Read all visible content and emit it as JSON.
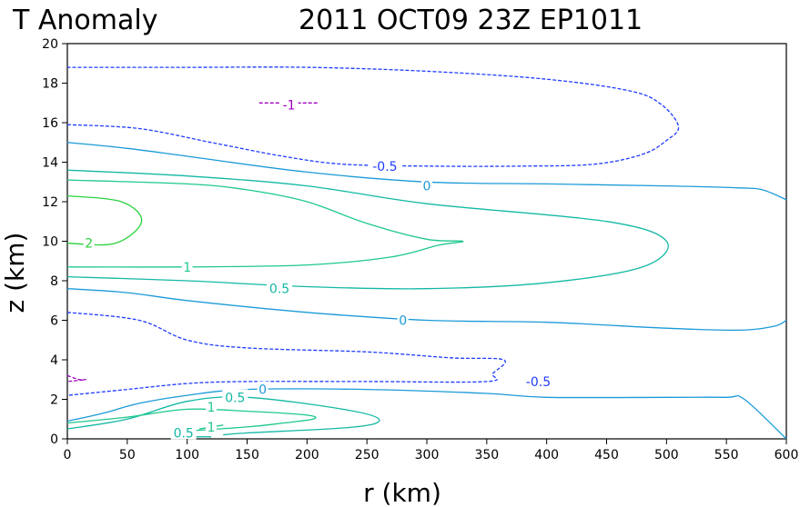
{
  "title": {
    "left": "T Anomaly",
    "right": "2011 OCT09 23Z  EP1011"
  },
  "chart_data": {
    "type": "contour",
    "title": "T Anomaly",
    "subtitle": "2011 OCT09 23Z  EP1011",
    "xlabel": "r (km)",
    "ylabel": "z (km)",
    "xlim": [
      0,
      600
    ],
    "ylim": [
      0,
      20
    ],
    "xticks": [
      0,
      50,
      100,
      150,
      200,
      250,
      300,
      350,
      400,
      450,
      500,
      550,
      600
    ],
    "yticks": [
      0,
      2,
      4,
      6,
      8,
      10,
      12,
      14,
      16,
      18,
      20
    ],
    "grid": false,
    "colors": {
      "neg1": "#a000c0",
      "neg05": "#1e3cff",
      "zero": "#1c9ad8",
      "pos05": "#13b8a4",
      "pos1": "#1ec88c",
      "pos2": "#28d23c"
    },
    "contours": [
      {
        "level": -1,
        "color_key": "neg1",
        "dashed": true,
        "label": "-1",
        "label_at": [
          185,
          16.9
        ],
        "points": [
          [
            160,
            17.0
          ],
          [
            210,
            17.0
          ]
        ]
      },
      {
        "level": -1,
        "color_key": "neg1",
        "dashed": true,
        "label": "",
        "label_at": null,
        "points": [
          [
            0,
            3.2
          ],
          [
            10,
            3.0
          ],
          [
            15,
            3.0
          ],
          [
            0,
            2.9
          ]
        ]
      },
      {
        "level": -0.5,
        "color_key": "neg05",
        "dashed": true,
        "label": "-0.5",
        "label_at": [
          265,
          13.8
        ],
        "points": [
          [
            0,
            15.9
          ],
          [
            60,
            15.7
          ],
          [
            120,
            15.0
          ],
          [
            180,
            14.3
          ],
          [
            230,
            13.9
          ],
          [
            300,
            13.8
          ],
          [
            380,
            13.8
          ],
          [
            440,
            13.9
          ],
          [
            480,
            14.4
          ],
          [
            500,
            15.1
          ],
          [
            510,
            15.8
          ],
          [
            496,
            16.9
          ],
          [
            470,
            17.6
          ],
          [
            400,
            18.2
          ],
          [
            300,
            18.6
          ],
          [
            200,
            18.8
          ],
          [
            100,
            18.8
          ],
          [
            0,
            18.8
          ]
        ]
      },
      {
        "level": -0.5,
        "color_key": "neg05",
        "dashed": true,
        "label": "-0.5",
        "label_at": [
          393,
          2.9
        ],
        "points": [
          [
            0,
            6.4
          ],
          [
            60,
            6.0
          ],
          [
            100,
            5.0
          ],
          [
            150,
            4.6
          ],
          [
            250,
            4.4
          ],
          [
            320,
            4.1
          ],
          [
            364,
            4.0
          ],
          [
            355,
            3.3
          ],
          [
            350,
            2.9
          ],
          [
            250,
            2.9
          ],
          [
            150,
            2.9
          ],
          [
            100,
            2.8
          ],
          [
            50,
            2.5
          ],
          [
            0,
            2.2
          ]
        ]
      },
      {
        "level": 0,
        "color_key": "zero",
        "dashed": false,
        "label": "0",
        "label_at": [
          300,
          12.8
        ],
        "points": [
          [
            0,
            15.0
          ],
          [
            50,
            14.7
          ],
          [
            100,
            14.3
          ],
          [
            200,
            13.5
          ],
          [
            300,
            13.0
          ],
          [
            400,
            12.9
          ],
          [
            500,
            12.8
          ],
          [
            560,
            12.7
          ],
          [
            580,
            12.6
          ],
          [
            600,
            12.1
          ]
        ]
      },
      {
        "level": 0,
        "color_key": "zero",
        "dashed": false,
        "label": "0",
        "label_at": [
          280,
          6.0
        ],
        "points": [
          [
            0,
            7.6
          ],
          [
            50,
            7.4
          ],
          [
            100,
            7.0
          ],
          [
            200,
            6.4
          ],
          [
            300,
            6.0
          ],
          [
            400,
            5.9
          ],
          [
            500,
            5.6
          ],
          [
            560,
            5.5
          ],
          [
            590,
            5.7
          ],
          [
            600,
            6.0
          ]
        ]
      },
      {
        "level": 0,
        "color_key": "zero",
        "dashed": false,
        "label": "0",
        "label_at": [
          163,
          2.5
        ],
        "points": [
          [
            0,
            0.9
          ],
          [
            30,
            1.3
          ],
          [
            60,
            1.8
          ],
          [
            100,
            2.2
          ],
          [
            150,
            2.5
          ],
          [
            250,
            2.5
          ],
          [
            350,
            2.3
          ],
          [
            400,
            2.1
          ],
          [
            500,
            2.1
          ],
          [
            550,
            2.1
          ],
          [
            565,
            2.0
          ],
          [
            600,
            0.0
          ]
        ]
      },
      {
        "level": 0.5,
        "color_key": "pos05",
        "dashed": false,
        "label": "0.5",
        "label_at": [
          177,
          7.6
        ],
        "points": [
          [
            0,
            8.2
          ],
          [
            100,
            8.0
          ],
          [
            200,
            7.7
          ],
          [
            300,
            7.6
          ],
          [
            400,
            7.9
          ],
          [
            480,
            8.7
          ],
          [
            500,
            10.0
          ],
          [
            450,
            11.0
          ],
          [
            300,
            11.9
          ],
          [
            200,
            12.8
          ],
          [
            100,
            13.3
          ],
          [
            0,
            13.6
          ]
        ]
      },
      {
        "level": 0.5,
        "color_key": "pos05",
        "dashed": false,
        "label": "0.5",
        "label_at": [
          140,
          2.1
        ],
        "points": [
          [
            0,
            0.5
          ],
          [
            50,
            1.0
          ],
          [
            100,
            1.9
          ],
          [
            150,
            2.1
          ],
          [
            230,
            1.5
          ],
          [
            260,
            1.0
          ],
          [
            240,
            0.6
          ],
          [
            150,
            0.3
          ],
          [
            130,
            0.2
          ]
        ]
      },
      {
        "level": 0.5,
        "color_key": "pos05",
        "dashed": false,
        "label": "0.5",
        "label_at": [
          97,
          0.3
        ],
        "points": [
          [
            90,
            0.0
          ],
          [
            100,
            0.1
          ],
          [
            120,
            0.1
          ]
        ]
      },
      {
        "level": 1,
        "color_key": "pos1",
        "dashed": false,
        "label": "1",
        "label_at": [
          100,
          8.7
        ],
        "points": [
          [
            0,
            8.7
          ],
          [
            100,
            8.7
          ],
          [
            200,
            8.8
          ],
          [
            270,
            9.2
          ],
          [
            310,
            9.8
          ],
          [
            330,
            10.0
          ],
          [
            300,
            10.1
          ],
          [
            250,
            10.9
          ],
          [
            200,
            12.0
          ],
          [
            150,
            12.6
          ],
          [
            100,
            12.9
          ],
          [
            0,
            13.1
          ]
        ]
      },
      {
        "level": 1,
        "color_key": "pos1",
        "dashed": false,
        "label": "1",
        "label_at": [
          120,
          1.6
        ],
        "points": [
          [
            0,
            0.8
          ],
          [
            50,
            1.1
          ],
          [
            100,
            1.5
          ],
          [
            150,
            1.4
          ],
          [
            200,
            1.2
          ],
          [
            205,
            1.0
          ],
          [
            180,
            0.8
          ],
          [
            150,
            0.6
          ],
          [
            100,
            0.4
          ]
        ]
      },
      {
        "level": 1,
        "color_key": "pos1",
        "dashed": false,
        "label": "1",
        "label_at": [
          120,
          0.6
        ],
        "points": [
          [
            110,
            0.5
          ],
          [
            130,
            0.7
          ]
        ]
      },
      {
        "level": 2,
        "color_key": "pos2",
        "dashed": false,
        "label": "2",
        "label_at": [
          18,
          9.9
        ],
        "points": [
          [
            0,
            9.9
          ],
          [
            40,
            9.9
          ],
          [
            62,
            11.0
          ],
          [
            45,
            12.0
          ],
          [
            0,
            12.3
          ]
        ]
      }
    ]
  }
}
